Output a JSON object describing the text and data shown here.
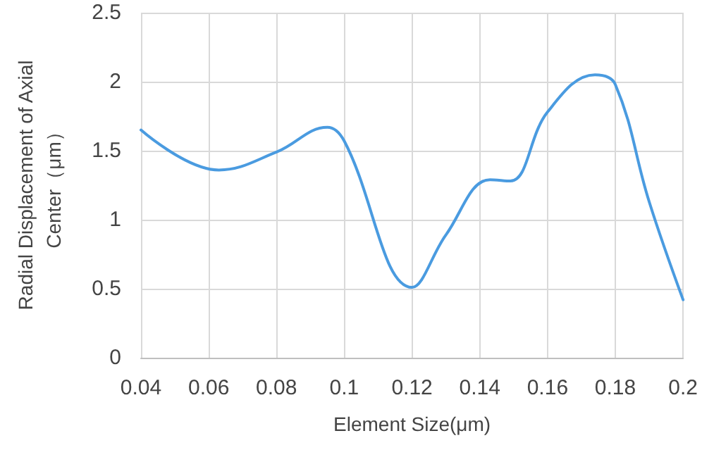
{
  "chart_data": {
    "type": "line",
    "xlabel": "Element Size(μm)",
    "ylabel": "Radial Displacement of Axial Center（μm）",
    "x": [
      0.04,
      0.063,
      0.08,
      0.095,
      0.1,
      0.12,
      0.13,
      0.143,
      0.149,
      0.16,
      0.174,
      0.18,
      0.19,
      0.2
    ],
    "series": [
      {
        "color": "#4a9be0",
        "values": [
          1.65,
          1.36,
          1.49,
          1.67,
          1.57,
          0.51,
          0.89,
          1.29,
          1.28,
          1.78,
          2.05,
          1.98,
          1.13,
          0.42
        ]
      }
    ],
    "xlim": [
      0.04,
      0.2
    ],
    "xticks": [
      0.04,
      0.06,
      0.08,
      0.1,
      0.12,
      0.14,
      0.16,
      0.18,
      0.2
    ],
    "ylim": [
      0,
      2.5
    ],
    "yticks": [
      0,
      0.5,
      1,
      1.5,
      2,
      2.5
    ],
    "grid": true,
    "marker": "none",
    "line_style": "solid"
  }
}
